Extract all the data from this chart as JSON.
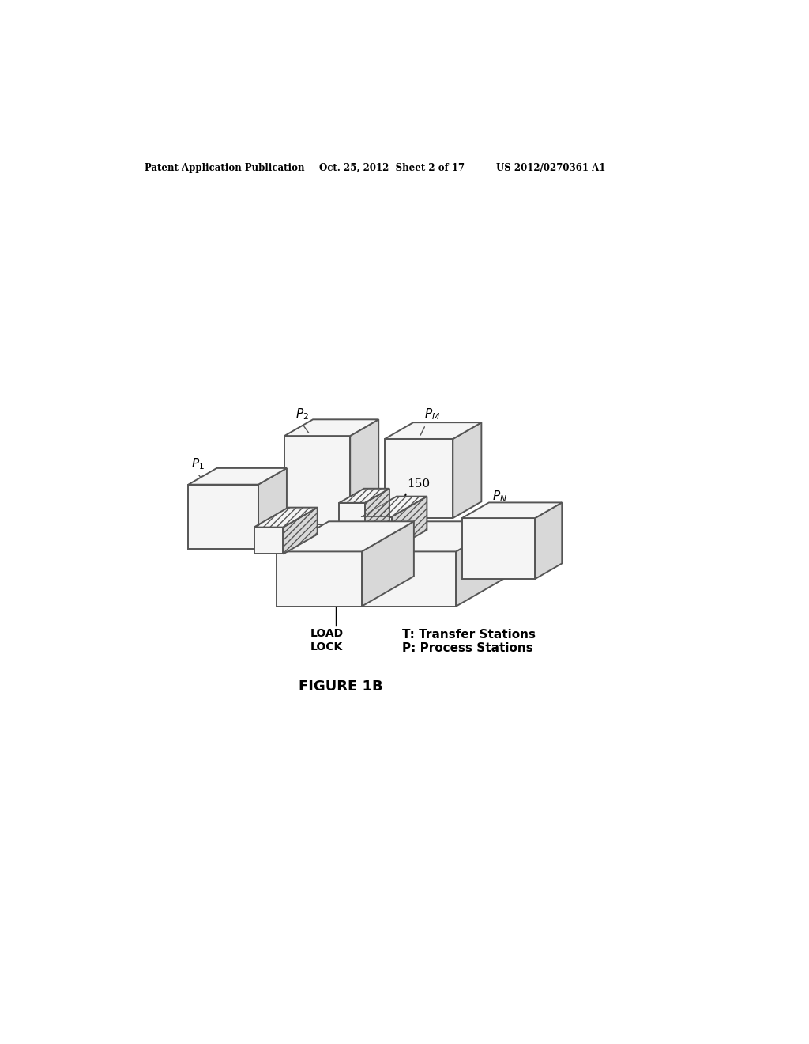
{
  "bg_color": "#ffffff",
  "header_left": "Patent Application Publication",
  "header_mid": "Oct. 25, 2012  Sheet 2 of 17",
  "header_right": "US 2012/0270361 A1",
  "figure_label": "FIGURE 1B",
  "ref_number": "150",
  "legend_T": "T: Transfer Stations",
  "legend_P": "P: Process Stations",
  "load_lock_label": "LOAD\nLOCK",
  "edge_color": "#555555",
  "face_white": "#f5f5f5",
  "face_gray": "#d8d8d8",
  "face_side": "#e2e2e2"
}
